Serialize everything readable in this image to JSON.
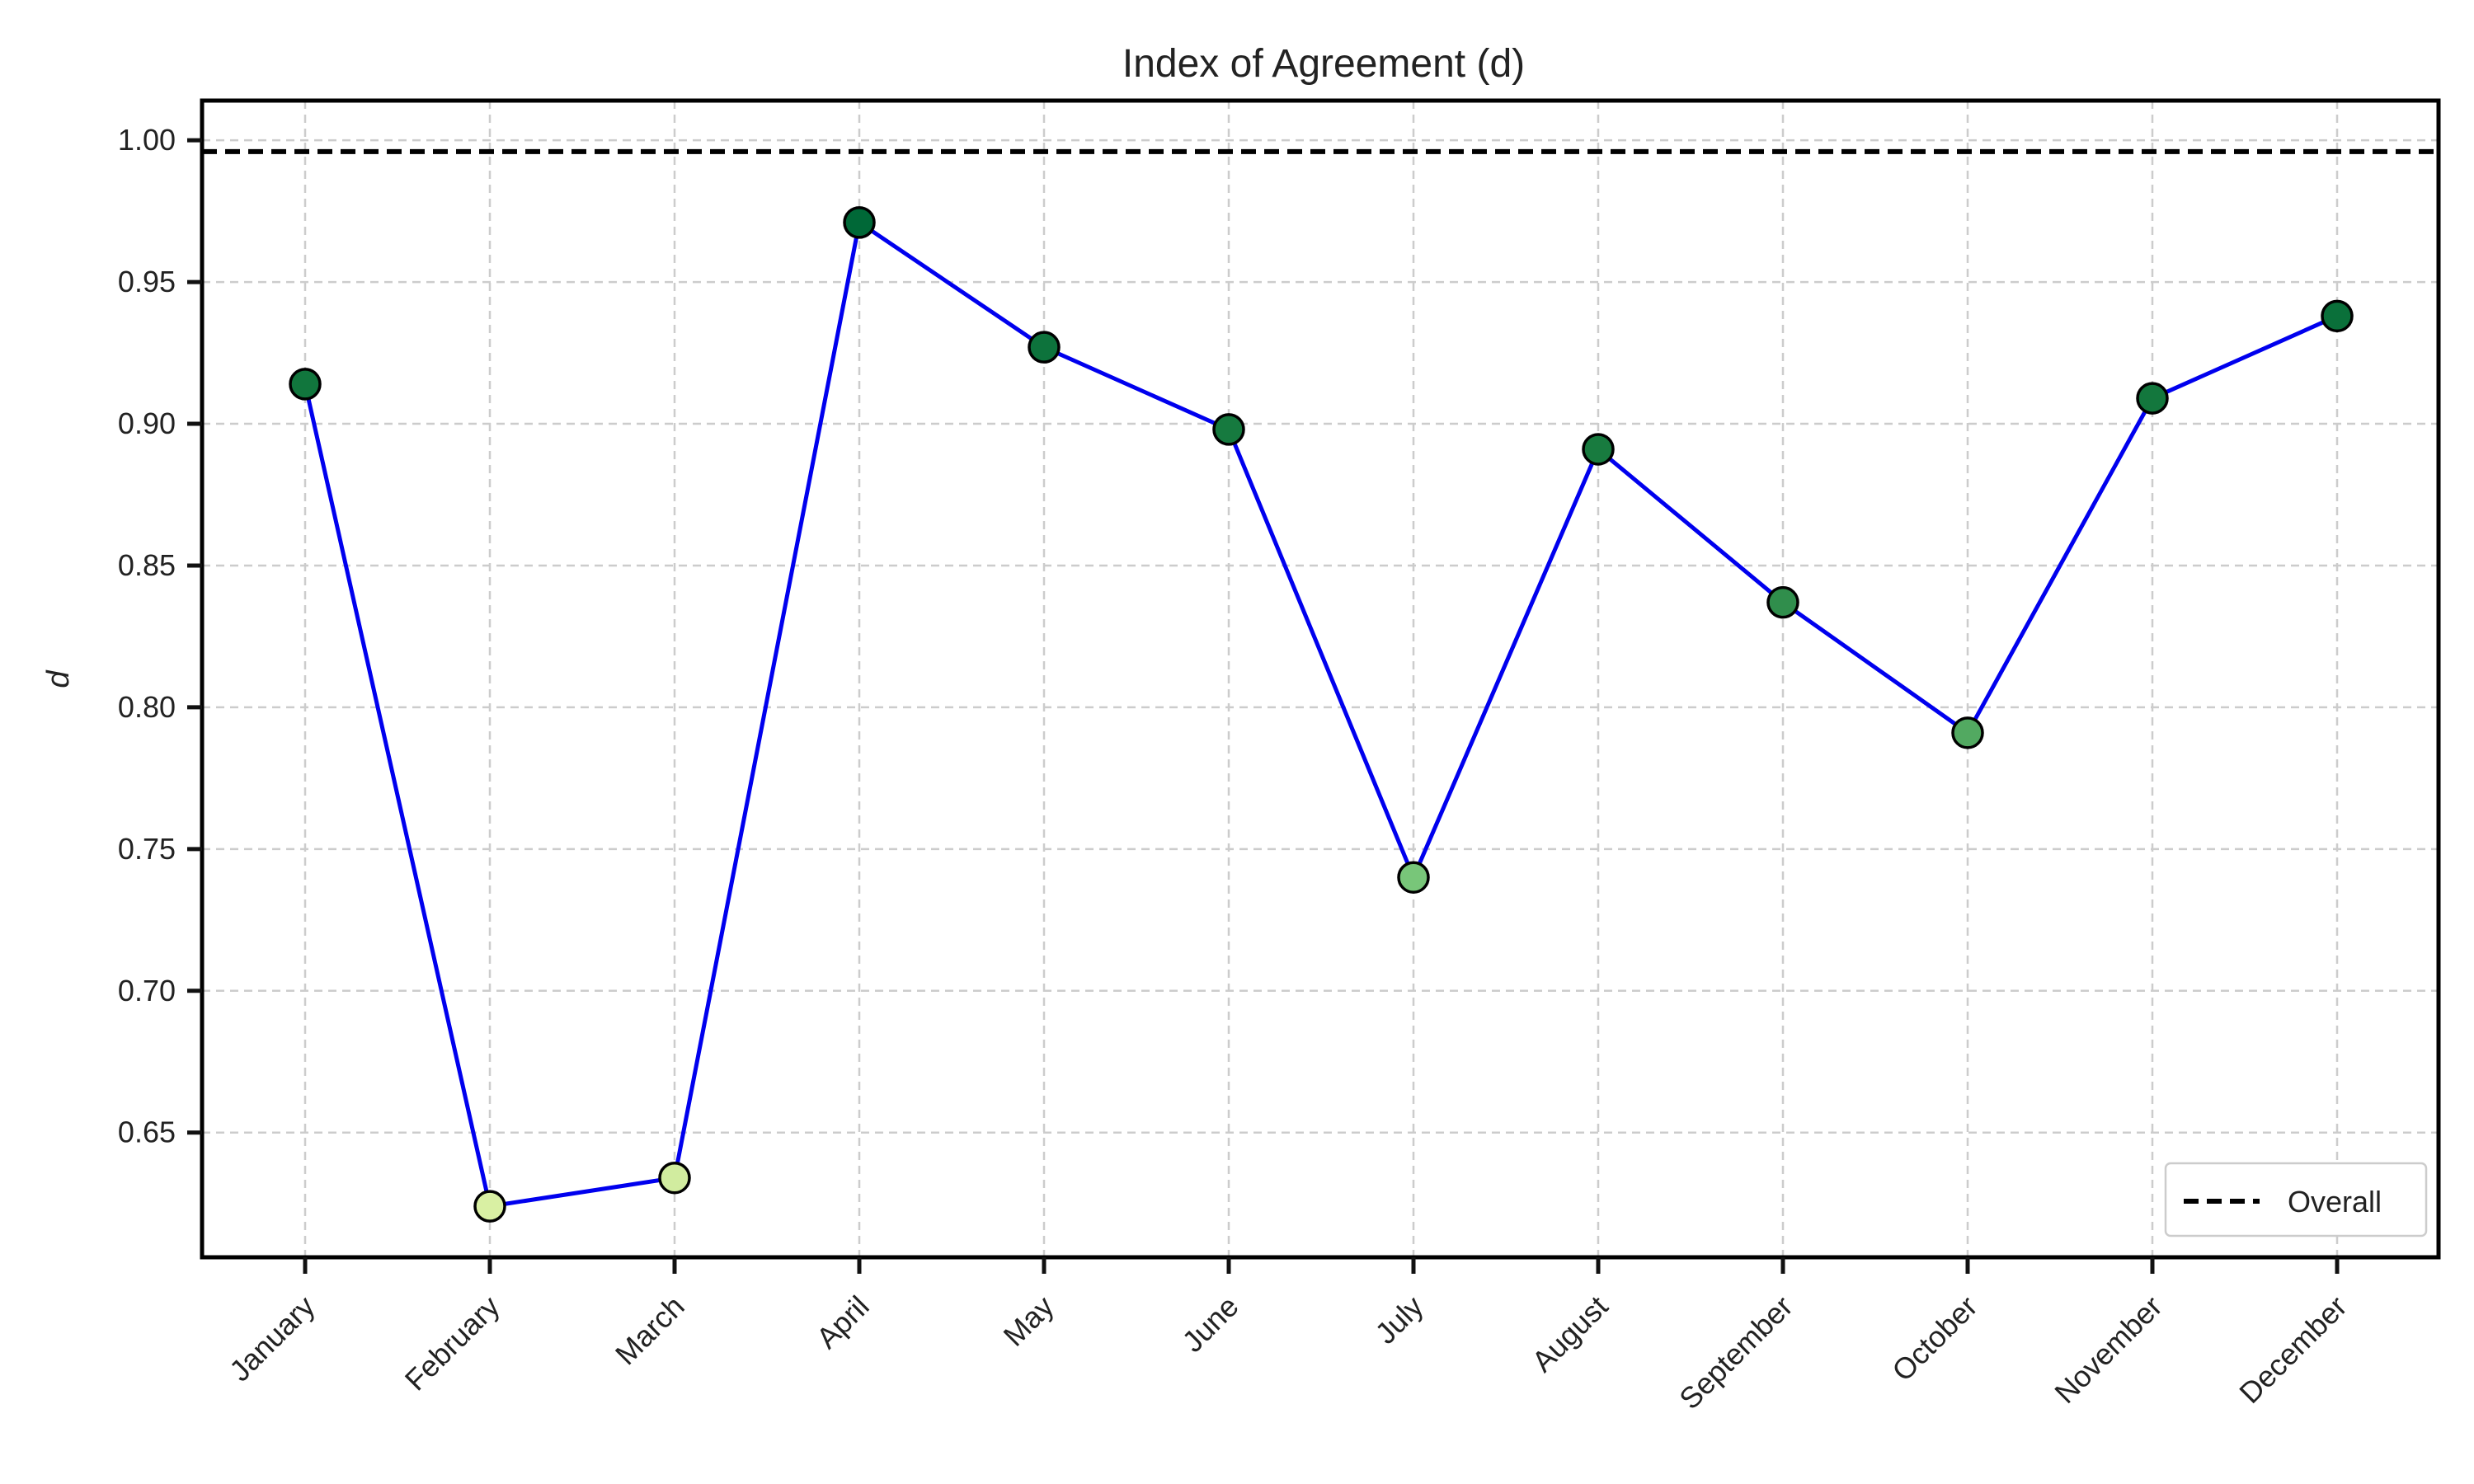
{
  "chart_data": {
    "type": "line",
    "title": "Index of Agreement (d)",
    "xlabel": "",
    "ylabel": "d",
    "categories": [
      "January",
      "February",
      "March",
      "April",
      "May",
      "June",
      "July",
      "August",
      "September",
      "October",
      "November",
      "December"
    ],
    "series": [
      {
        "values": [
          0.914,
          0.624,
          0.634,
          0.971,
          0.927,
          0.898,
          0.74,
          0.891,
          0.837,
          0.791,
          0.909,
          0.938
        ],
        "line_color": "#0000ee",
        "marker_colormap": [
          "#d9f0a3",
          "#78c679",
          "#238443",
          "#006837"
        ]
      }
    ],
    "reference_lines": [
      {
        "name": "Overall",
        "value": 0.996,
        "style": "dashed",
        "color": "#000000"
      }
    ],
    "ylim": [
      0.606,
      1.014
    ],
    "yticks": [
      "0.65",
      "0.70",
      "0.75",
      "0.80",
      "0.85",
      "0.90",
      "0.95",
      "1.00"
    ],
    "grid": true,
    "legend": {
      "position": "lower-right",
      "entries": [
        "Overall"
      ]
    }
  }
}
